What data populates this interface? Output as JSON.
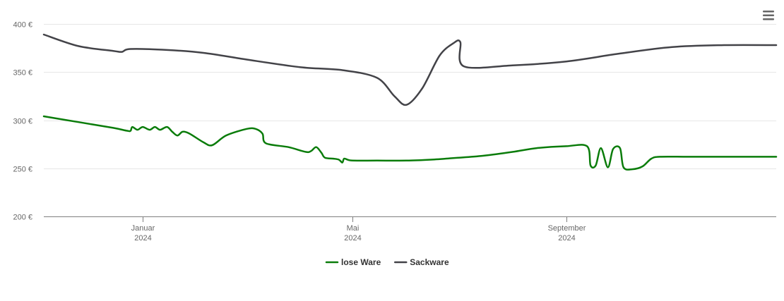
{
  "chart_data": {
    "type": "line",
    "title": "",
    "xlabel": "",
    "ylabel": "",
    "ylim": [
      200,
      400
    ],
    "xlim": [
      "2023-11-05",
      "2024-12-31"
    ],
    "yticks": [
      {
        "value": 200,
        "label": "200 €"
      },
      {
        "value": 250,
        "label": "250 €"
      },
      {
        "value": 300,
        "label": "300 €"
      },
      {
        "value": 350,
        "label": "350 €"
      },
      {
        "value": 400,
        "label": "400 €"
      }
    ],
    "xticks": [
      {
        "date": "2024-01-01",
        "label": [
          "Januar",
          "2024"
        ]
      },
      {
        "date": "2024-05-01",
        "label": [
          "Mai",
          "2024"
        ]
      },
      {
        "date": "2024-09-01",
        "label": [
          "September",
          "2024"
        ]
      }
    ],
    "grid": true,
    "legend_position": "bottom-center",
    "series": [
      {
        "name": "lose Ware",
        "color": "#0a7c0a",
        "points": [
          [
            "2023-11-05",
            304
          ],
          [
            "2023-11-25",
            298
          ],
          [
            "2023-12-15",
            292
          ],
          [
            "2023-12-23",
            289
          ],
          [
            "2023-12-25",
            289
          ],
          [
            "2023-12-26",
            293
          ],
          [
            "2023-12-29",
            290
          ],
          [
            "2024-01-01",
            293
          ],
          [
            "2024-01-05",
            290
          ],
          [
            "2024-01-08",
            293
          ],
          [
            "2024-01-11",
            290
          ],
          [
            "2024-01-15",
            293
          ],
          [
            "2024-01-18",
            288
          ],
          [
            "2024-01-21",
            284
          ],
          [
            "2024-01-24",
            288
          ],
          [
            "2024-01-28",
            286
          ],
          [
            "2024-02-05",
            277
          ],
          [
            "2024-02-10",
            274
          ],
          [
            "2024-02-18",
            284
          ],
          [
            "2024-03-01",
            291
          ],
          [
            "2024-03-06",
            291
          ],
          [
            "2024-03-10",
            286
          ],
          [
            "2024-03-12",
            276
          ],
          [
            "2024-03-25",
            272
          ],
          [
            "2024-04-04",
            267
          ],
          [
            "2024-04-07",
            268
          ],
          [
            "2024-04-10",
            272
          ],
          [
            "2024-04-13",
            266
          ],
          [
            "2024-04-15",
            261
          ],
          [
            "2024-04-20",
            260
          ],
          [
            "2024-04-23",
            259
          ],
          [
            "2024-04-25",
            256
          ],
          [
            "2024-04-26",
            260
          ],
          [
            "2024-04-28",
            259
          ],
          [
            "2024-05-01",
            258
          ],
          [
            "2024-05-15",
            258
          ],
          [
            "2024-06-01",
            258
          ],
          [
            "2024-06-15",
            259
          ],
          [
            "2024-07-01",
            261
          ],
          [
            "2024-07-15",
            263
          ],
          [
            "2024-08-01",
            267
          ],
          [
            "2024-08-15",
            271
          ],
          [
            "2024-09-01",
            273
          ],
          [
            "2024-09-13",
            273
          ],
          [
            "2024-09-15",
            253
          ],
          [
            "2024-09-18",
            253
          ],
          [
            "2024-09-21",
            271
          ],
          [
            "2024-09-25",
            251
          ],
          [
            "2024-09-28",
            270
          ],
          [
            "2024-10-02",
            271
          ],
          [
            "2024-10-04",
            251
          ],
          [
            "2024-10-09",
            249
          ],
          [
            "2024-10-15",
            252
          ],
          [
            "2024-10-20",
            260
          ],
          [
            "2024-10-25",
            262
          ],
          [
            "2024-11-10",
            262
          ],
          [
            "2024-12-01",
            262
          ],
          [
            "2024-12-31",
            262
          ]
        ]
      },
      {
        "name": "Sackware",
        "color": "#434348",
        "points": [
          [
            "2023-11-05",
            389
          ],
          [
            "2023-11-25",
            377
          ],
          [
            "2023-12-15",
            372
          ],
          [
            "2023-12-20",
            371
          ],
          [
            "2023-12-25",
            374
          ],
          [
            "2024-01-15",
            373
          ],
          [
            "2024-02-05",
            370
          ],
          [
            "2024-03-01",
            363
          ],
          [
            "2024-04-01",
            355
          ],
          [
            "2024-04-25",
            352
          ],
          [
            "2024-05-15",
            344
          ],
          [
            "2024-05-25",
            325
          ],
          [
            "2024-06-01",
            316
          ],
          [
            "2024-06-10",
            333
          ],
          [
            "2024-06-20",
            367
          ],
          [
            "2024-06-28",
            380
          ],
          [
            "2024-07-02",
            381
          ],
          [
            "2024-07-04",
            356
          ],
          [
            "2024-08-01",
            357
          ],
          [
            "2024-09-01",
            361
          ],
          [
            "2024-10-01",
            369
          ],
          [
            "2024-11-01",
            376
          ],
          [
            "2024-12-01",
            378
          ],
          [
            "2024-12-31",
            378
          ]
        ]
      }
    ]
  },
  "ui": {
    "menu_icon": "hamburger-menu-icon"
  }
}
